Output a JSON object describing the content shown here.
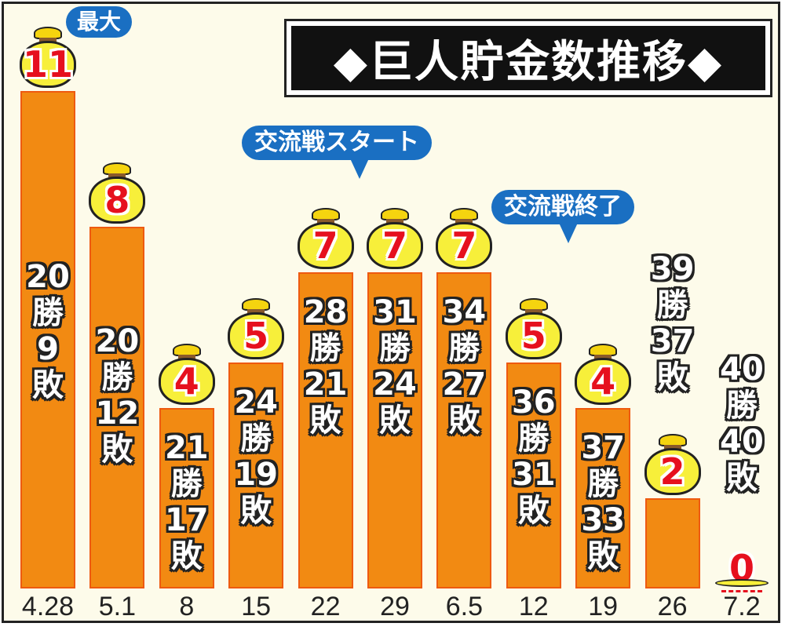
{
  "title": "◆巨人貯金数推移◆",
  "annotations": {
    "max_label": "最大",
    "interleague_start": "交流戦スタート",
    "interleague_end": "交流戦終了"
  },
  "colors": {
    "bar": "#f28a12",
    "bar_border": "#ee5a10",
    "bag": "#f7ef3a",
    "number": "#e6101e",
    "bubble": "#1a6fc2",
    "background": "#fdfbea",
    "title_bg": "#111111"
  },
  "bars": [
    {
      "date": "4.28",
      "savings": "11",
      "wins": "20",
      "win_char": "勝",
      "losses": "9",
      "loss_char": "敗"
    },
    {
      "date": "5.1",
      "savings": "8",
      "wins": "20",
      "win_char": "勝",
      "losses": "12",
      "loss_char": "敗"
    },
    {
      "date": "8",
      "savings": "4",
      "wins": "21",
      "win_char": "勝",
      "losses": "17",
      "loss_char": "敗"
    },
    {
      "date": "15",
      "savings": "5",
      "wins": "24",
      "win_char": "勝",
      "losses": "19",
      "loss_char": "敗"
    },
    {
      "date": "22",
      "savings": "7",
      "wins": "28",
      "win_char": "勝",
      "losses": "21",
      "loss_char": "敗"
    },
    {
      "date": "29",
      "savings": "7",
      "wins": "31",
      "win_char": "勝",
      "losses": "24",
      "loss_char": "敗"
    },
    {
      "date": "6.5",
      "savings": "7",
      "wins": "34",
      "win_char": "勝",
      "losses": "27",
      "loss_char": "敗"
    },
    {
      "date": "12",
      "savings": "5",
      "wins": "36",
      "win_char": "勝",
      "losses": "31",
      "loss_char": "敗"
    },
    {
      "date": "19",
      "savings": "4",
      "wins": "37",
      "win_char": "勝",
      "losses": "33",
      "loss_char": "敗"
    },
    {
      "date": "26",
      "savings": "2",
      "wins": "39",
      "win_char": "勝",
      "losses": "37",
      "loss_char": "敗"
    },
    {
      "date": "7.2",
      "savings": "0",
      "wins": "40",
      "win_char": "勝",
      "losses": "40",
      "loss_char": "敗"
    }
  ],
  "chart_data": {
    "type": "bar",
    "title": "◆巨人貯金数推移◆",
    "xlabel": "",
    "ylabel": "",
    "categories": [
      "4.28",
      "5.1",
      "8",
      "15",
      "22",
      "29",
      "6.5",
      "12",
      "19",
      "26",
      "7.2"
    ],
    "values": [
      11,
      8,
      4,
      5,
      7,
      7,
      7,
      5,
      4,
      2,
      0
    ],
    "wins": [
      20,
      20,
      21,
      24,
      28,
      31,
      34,
      36,
      37,
      39,
      40
    ],
    "losses": [
      9,
      12,
      17,
      19,
      21,
      24,
      27,
      31,
      33,
      37,
      40
    ],
    "ylim": [
      0,
      11
    ],
    "grid": false,
    "legend": null,
    "annotations": [
      {
        "category": "4.28",
        "text": "最大"
      },
      {
        "between": [
          "22",
          "29"
        ],
        "text": "交流戦スタート"
      },
      {
        "between": [
          "12",
          "19"
        ],
        "text": "交流戦終了"
      }
    ]
  }
}
